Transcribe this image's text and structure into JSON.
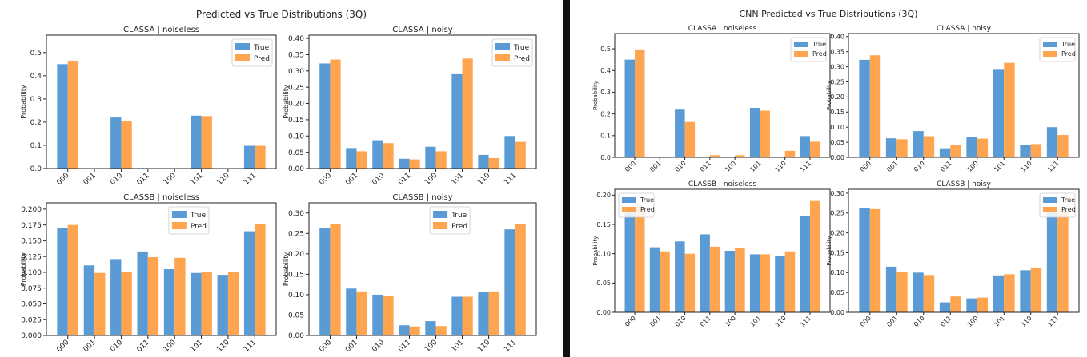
{
  "figures": [
    {
      "title": "Predicted vs True Distributions (3Q)",
      "charts": [
        {
          "type": "bar",
          "title": "CLASSA | noiseless",
          "xlabel": "",
          "ylabel": "Probability",
          "categories": [
            "000",
            "001",
            "010",
            "011",
            "100",
            "101",
            "110",
            "111"
          ],
          "series": [
            {
              "name": "True",
              "values": [
                0.45,
                0.0,
                0.22,
                0.002,
                0.0,
                0.228,
                0.0,
                0.098
              ]
            },
            {
              "name": "Pred",
              "values": [
                0.465,
                0.001,
                0.205,
                0.001,
                0.001,
                0.226,
                0.001,
                0.098
              ]
            }
          ],
          "ylim": [
            0,
            0.575
          ],
          "yticks": [
            "0.0",
            "0.1",
            "0.2",
            "0.3",
            "0.4",
            "0.5"
          ],
          "legend": "top-right"
        },
        {
          "type": "bar",
          "title": "CLASSA | noisy",
          "xlabel": "",
          "ylabel": "Probability",
          "categories": [
            "000",
            "001",
            "010",
            "011",
            "100",
            "101",
            "110",
            "111"
          ],
          "series": [
            {
              "name": "True",
              "values": [
                0.323,
                0.063,
                0.087,
                0.03,
                0.067,
                0.29,
                0.042,
                0.1
              ]
            },
            {
              "name": "Pred",
              "values": [
                0.335,
                0.053,
                0.078,
                0.028,
                0.053,
                0.338,
                0.032,
                0.082
              ]
            }
          ],
          "ylim": [
            0,
            0.41
          ],
          "yticks": [
            "0.00",
            "0.05",
            "0.10",
            "0.15",
            "0.20",
            "0.25",
            "0.30",
            "0.35",
            "0.40"
          ],
          "legend": "top-right"
        },
        {
          "type": "bar",
          "title": "CLASSB | noiseless",
          "xlabel": "",
          "ylabel": "Probability",
          "categories": [
            "000",
            "001",
            "010",
            "011",
            "100",
            "101",
            "110",
            "111"
          ],
          "series": [
            {
              "name": "True",
              "values": [
                0.17,
                0.111,
                0.121,
                0.133,
                0.105,
                0.099,
                0.096,
                0.165
              ]
            },
            {
              "name": "Pred",
              "values": [
                0.175,
                0.099,
                0.1,
                0.124,
                0.123,
                0.1,
                0.101,
                0.177
              ]
            }
          ],
          "ylim": [
            0,
            0.21
          ],
          "yticks": [
            "0.000",
            "0.025",
            "0.050",
            "0.075",
            "0.100",
            "0.125",
            "0.150",
            "0.175",
            "0.200"
          ],
          "legend": "top-center"
        },
        {
          "type": "bar",
          "title": "CLASSB | noisy",
          "xlabel": "",
          "ylabel": "Probability",
          "categories": [
            "000",
            "001",
            "010",
            "011",
            "100",
            "101",
            "110",
            "111"
          ],
          "series": [
            {
              "name": "True",
              "values": [
                0.263,
                0.115,
                0.1,
                0.025,
                0.035,
                0.095,
                0.107,
                0.26
              ]
            },
            {
              "name": "Pred",
              "values": [
                0.273,
                0.108,
                0.098,
                0.022,
                0.023,
                0.095,
                0.108,
                0.273
              ]
            }
          ],
          "ylim": [
            0,
            0.325
          ],
          "yticks": [
            "0.00",
            "0.05",
            "0.10",
            "0.15",
            "0.20",
            "0.25",
            "0.30"
          ],
          "legend": "top-center"
        }
      ]
    },
    {
      "title": "CNN Predicted vs True Distributions (3Q)",
      "charts": [
        {
          "type": "bar",
          "title": "CLASSA | noiseless",
          "xlabel": "",
          "ylabel": "Probability",
          "categories": [
            "000",
            "001",
            "010",
            "011",
            "100",
            "101",
            "110",
            "111"
          ],
          "series": [
            {
              "name": "True",
              "values": [
                0.45,
                0.0,
                0.22,
                0.002,
                0.0,
                0.228,
                0.0,
                0.098
              ]
            },
            {
              "name": "Pred",
              "values": [
                0.497,
                0.003,
                0.163,
                0.01,
                0.01,
                0.215,
                0.03,
                0.072
              ]
            }
          ],
          "ylim": [
            0,
            0.57
          ],
          "yticks": [
            "0.0",
            "0.1",
            "0.2",
            "0.3",
            "0.4",
            "0.5"
          ],
          "legend": "top-right"
        },
        {
          "type": "bar",
          "title": "CLASSA | noisy",
          "xlabel": "",
          "ylabel": "Probability",
          "categories": [
            "000",
            "001",
            "010",
            "011",
            "100",
            "101",
            "110",
            "111"
          ],
          "series": [
            {
              "name": "True",
              "values": [
                0.323,
                0.063,
                0.087,
                0.03,
                0.067,
                0.29,
                0.042,
                0.1
              ]
            },
            {
              "name": "Pred",
              "values": [
                0.338,
                0.06,
                0.07,
                0.042,
                0.062,
                0.313,
                0.044,
                0.074
              ]
            }
          ],
          "ylim": [
            0,
            0.41
          ],
          "yticks": [
            "0.00",
            "0.05",
            "0.10",
            "0.15",
            "0.20",
            "0.25",
            "0.30",
            "0.35",
            "0.40"
          ],
          "legend": "top-right"
        },
        {
          "type": "bar",
          "title": "CLASSB | noiseless",
          "xlabel": "",
          "ylabel": "Probability",
          "categories": [
            "000",
            "001",
            "010",
            "011",
            "100",
            "101",
            "110",
            "111"
          ],
          "series": [
            {
              "name": "True",
              "values": [
                0.17,
                0.111,
                0.121,
                0.133,
                0.105,
                0.099,
                0.096,
                0.165
              ]
            },
            {
              "name": "Pred",
              "values": [
                0.182,
                0.104,
                0.1,
                0.112,
                0.11,
                0.099,
                0.104,
                0.19
              ]
            }
          ],
          "ylim": [
            0,
            0.21
          ],
          "yticks": [
            "0.00",
            "0.05",
            "0.10",
            "0.15",
            "0.20"
          ],
          "legend": "top-left"
        },
        {
          "type": "bar",
          "title": "CLASSB | noisy",
          "xlabel": "",
          "ylabel": "Probability",
          "categories": [
            "000",
            "001",
            "010",
            "011",
            "100",
            "101",
            "110",
            "111"
          ],
          "series": [
            {
              "name": "True",
              "values": [
                0.263,
                0.115,
                0.1,
                0.025,
                0.035,
                0.093,
                0.106,
                0.262
              ]
            },
            {
              "name": "Pred",
              "values": [
                0.26,
                0.102,
                0.094,
                0.04,
                0.037,
                0.096,
                0.112,
                0.255
              ]
            }
          ],
          "ylim": [
            0,
            0.31
          ],
          "yticks": [
            "0.00",
            "0.05",
            "0.10",
            "0.15",
            "0.20",
            "0.25",
            "0.30"
          ],
          "legend": "top-right"
        }
      ]
    }
  ],
  "colors": {
    "true": "#5b9bd5",
    "pred": "#ffa54f",
    "axis": "#222222"
  }
}
